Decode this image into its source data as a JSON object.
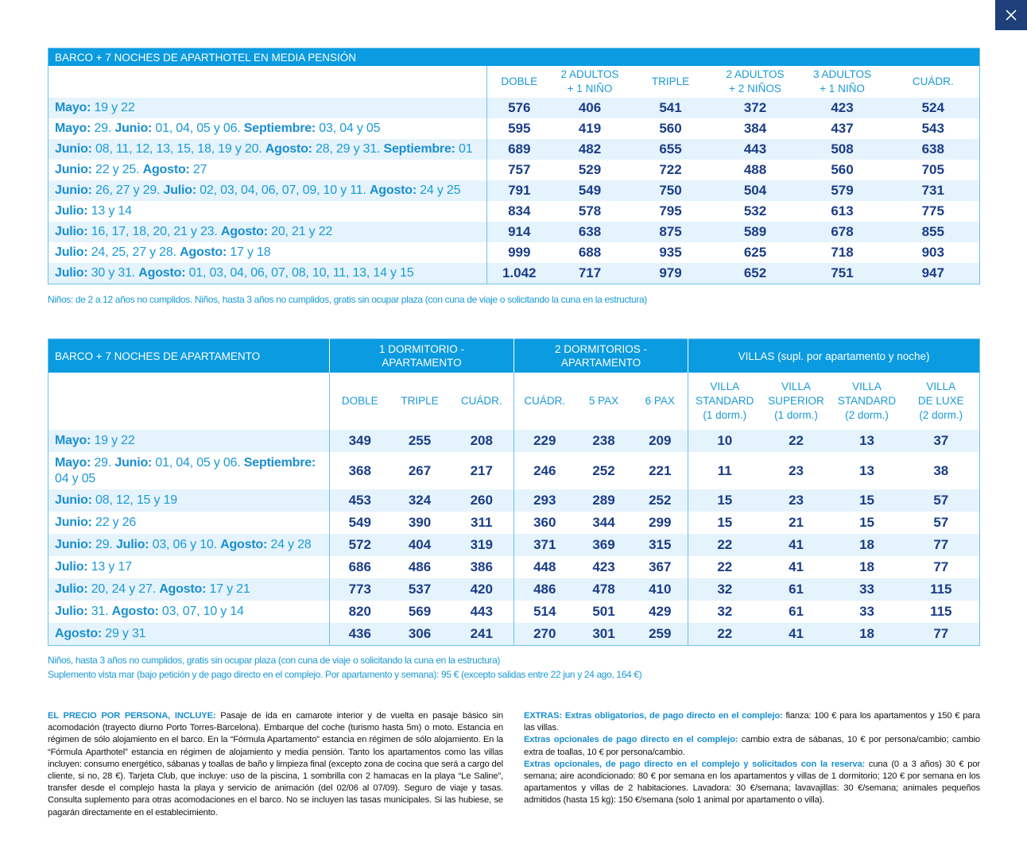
{
  "close_label": "×",
  "table1": {
    "title": "BARCO +  7 NOCHES DE APARTHOTEL EN MEDIA PENSIÓN",
    "headers": [
      "DOBLE",
      "2 ADULTOS\n+ 1 NIÑO",
      "TRIPLE",
      "2 ADULTOS\n+ 2 NIÑOS",
      "3 ADULTOS\n+ 1 NIÑO",
      "CUÁDR."
    ],
    "rows": [
      {
        "date": [
          "Mayo:",
          " 19 y 22"
        ],
        "prices": [
          576,
          406,
          541,
          372,
          423,
          524
        ]
      },
      {
        "date": [
          "Mayo:",
          " 29. ",
          "Junio:",
          " 01, 04, 05 y 06. ",
          "Septiembre:",
          " 03, 04 y 05"
        ],
        "prices": [
          595,
          419,
          560,
          384,
          437,
          543
        ]
      },
      {
        "date": [
          "Junio:",
          " 08, 11, 12, 13, 15, 18, 19 y 20. ",
          "Agosto:",
          " 28, 29 y 31. ",
          "Septiembre:",
          " 01"
        ],
        "prices": [
          689,
          482,
          655,
          443,
          508,
          638
        ]
      },
      {
        "date": [
          "Junio:",
          " 22 y 25. ",
          "Agosto:",
          " 27"
        ],
        "prices": [
          757,
          529,
          722,
          488,
          560,
          705
        ]
      },
      {
        "date": [
          "Junio:",
          " 26, 27 y 29. ",
          "Julio:",
          " 02, 03, 04, 06, 07, 09, 10 y 11. ",
          "Agosto:",
          " 24 y 25"
        ],
        "prices": [
          791,
          549,
          750,
          504,
          579,
          731
        ]
      },
      {
        "date": [
          "Julio:",
          " 13 y 14"
        ],
        "prices": [
          834,
          578,
          795,
          532,
          613,
          775
        ]
      },
      {
        "date": [
          "Julio:",
          " 16, 17, 18, 20, 21 y 23. ",
          "Agosto:",
          " 20, 21 y 22"
        ],
        "prices": [
          914,
          638,
          875,
          589,
          678,
          855
        ]
      },
      {
        "date": [
          "Julio:",
          " 24, 25, 27 y 28. ",
          "Agosto:",
          " 17 y 18"
        ],
        "prices": [
          999,
          688,
          935,
          625,
          718,
          903
        ]
      },
      {
        "date": [
          "Julio:",
          " 30 y 31. ",
          "Agosto:",
          " 01, 03, 04, 06, 07, 08, 10, 11, 13, 14 y 15"
        ],
        "prices": [
          "1.042",
          717,
          979,
          652,
          751,
          947
        ]
      }
    ],
    "note": "Niños: de 2 a 12 años no cumplidos. Niños, hasta 3 años no cumplidos, gratis sin ocupar plaza (con cuna de viaje o solicitando la cuna en la estructura)"
  },
  "table2": {
    "title": "BARCO + 7 NOCHES DE APARTAMENTO",
    "groups": [
      "1 DORMITORIO -\nAPARTAMENTO",
      "2 DORMITORIOS -\nAPARTAMENTO",
      "VILLAS (supl. por apartamento y noche)"
    ],
    "headers": [
      "DOBLE",
      "TRIPLE",
      "CUÁDR.",
      "CUÁDR.",
      "5 PAX",
      "6 PAX",
      "VILLA\nSTANDARD\n(1 dorm.)",
      "VILLA\nSUPERIOR\n(1 dorm.)",
      "VILLA\nSTANDARD\n(2 dorm.)",
      "VILLA\nDE LUXE\n(2 dorm.)"
    ],
    "rows": [
      {
        "date": [
          "Mayo:",
          " 19 y 22"
        ],
        "prices": [
          349,
          255,
          208,
          229,
          238,
          209,
          10,
          22,
          13,
          37
        ]
      },
      {
        "date": [
          "Mayo:",
          " 29. ",
          "Junio:",
          " 01, 04, 05 y 06. ",
          "Septiembre:",
          " 04 y 05"
        ],
        "prices": [
          368,
          267,
          217,
          246,
          252,
          221,
          11,
          23,
          13,
          38
        ]
      },
      {
        "date": [
          "Junio:",
          " 08, 12, 15 y 19"
        ],
        "prices": [
          453,
          324,
          260,
          293,
          289,
          252,
          15,
          23,
          15,
          57
        ]
      },
      {
        "date": [
          "Junio:",
          " 22 y 26"
        ],
        "prices": [
          549,
          390,
          311,
          360,
          344,
          299,
          15,
          21,
          15,
          57
        ]
      },
      {
        "date": [
          "Junio:",
          " 29. ",
          "Julio:",
          " 03, 06 y 10. ",
          "Agosto:",
          " 24 y 28"
        ],
        "prices": [
          572,
          404,
          319,
          371,
          369,
          315,
          22,
          41,
          18,
          77
        ]
      },
      {
        "date": [
          "Julio:",
          " 13 y 17"
        ],
        "prices": [
          686,
          486,
          386,
          448,
          423,
          367,
          22,
          41,
          18,
          77
        ]
      },
      {
        "date": [
          "Julio:",
          " 20, 24 y 27. ",
          "Agosto:",
          " 17 y 21"
        ],
        "prices": [
          773,
          537,
          420,
          486,
          478,
          410,
          32,
          61,
          33,
          115
        ]
      },
      {
        "date": [
          "Julio:",
          " 31. ",
          "Agosto:",
          " 03, 07, 10 y 14"
        ],
        "prices": [
          820,
          569,
          443,
          514,
          501,
          429,
          32,
          61,
          33,
          115
        ]
      },
      {
        "date": [
          "Agosto:",
          " 29 y 31"
        ],
        "prices": [
          436,
          306,
          241,
          270,
          301,
          259,
          22,
          41,
          18,
          77
        ]
      }
    ],
    "notes": [
      "Niños, hasta 3 años no cumplidos, gratis sin ocupar plaza (con cuna de viaje o solicitando la cuna en la estructura)",
      "Suplemento vista mar (bajo petición y de pago directo en el complejo. Por apartamento y semana): 95 € (excepto salidas entre 22 jun y 24 ago, 164  €)"
    ]
  },
  "includes": [
    [
      "EL PRECIO POR PERSONA, INCLUYE:",
      " Pasaje de ida en camarote interior y de vuelta en pasaje básico sin acomodación (trayecto diurno Porto Torres-Barcelona). Embarque del coche (turismo hasta 5m) o moto.  Estancia en régimen de sólo alojamiento en el barco. En la “Fórmula Apartamento” estancia en régimen de sólo alojamiento. En la “Fórmula Aparthotel” estancia en régimen de alojamiento y media pensión. Tanto los apartamentos como las villas incluyen: consumo energético, sábanas y toallas de baño y limpieza final (excepto zona de cocina que será a cargo del cliente, si no, 28 €). Tarjeta Club, que incluye: uso de la piscina, 1 sombrilla con 2 hamacas en la playa “Le Saline”, transfer desde el complejo hasta la playa y servicio de animación (del 02/06 al 07/09). Seguro de viaje y tasas. Consulta suplemento para otras acomodaciones en el barco. No se incluyen las tasas municipales. Si las hubiese, se pagarán directamente en el establecimiento."
    ]
  ],
  "extras": [
    [
      "EXTRAS: Extras obligatorios, de pago directo en el complejo:",
      " fianza: 100 € para los apartamentos y 150 € para las villas."
    ],
    [
      "Extras opcionales de pago directo en el complejo:",
      " cambio extra de sábanas, 10 € por persona/cambio; cambio extra de toallas, 10 € por persona/cambio."
    ],
    [
      "Extras opcionales, de pago directo en el complejo y solicitados con la reserva:",
      " cuna (0 a 3 años) 30 € por semana; aire acondicionado: 80 € por semana en los apartamentos y villas de 1 dormitorio; 120 € por semana en los apartamentos y villas de 2 habitaciones. Lavadora: 30 €/semana; lavavajillas: 30 €/semana; animales pequeños admitidos (hasta 15 kg): 150 €/semana (solo 1 animal por apartamento o villa)."
    ]
  ]
}
